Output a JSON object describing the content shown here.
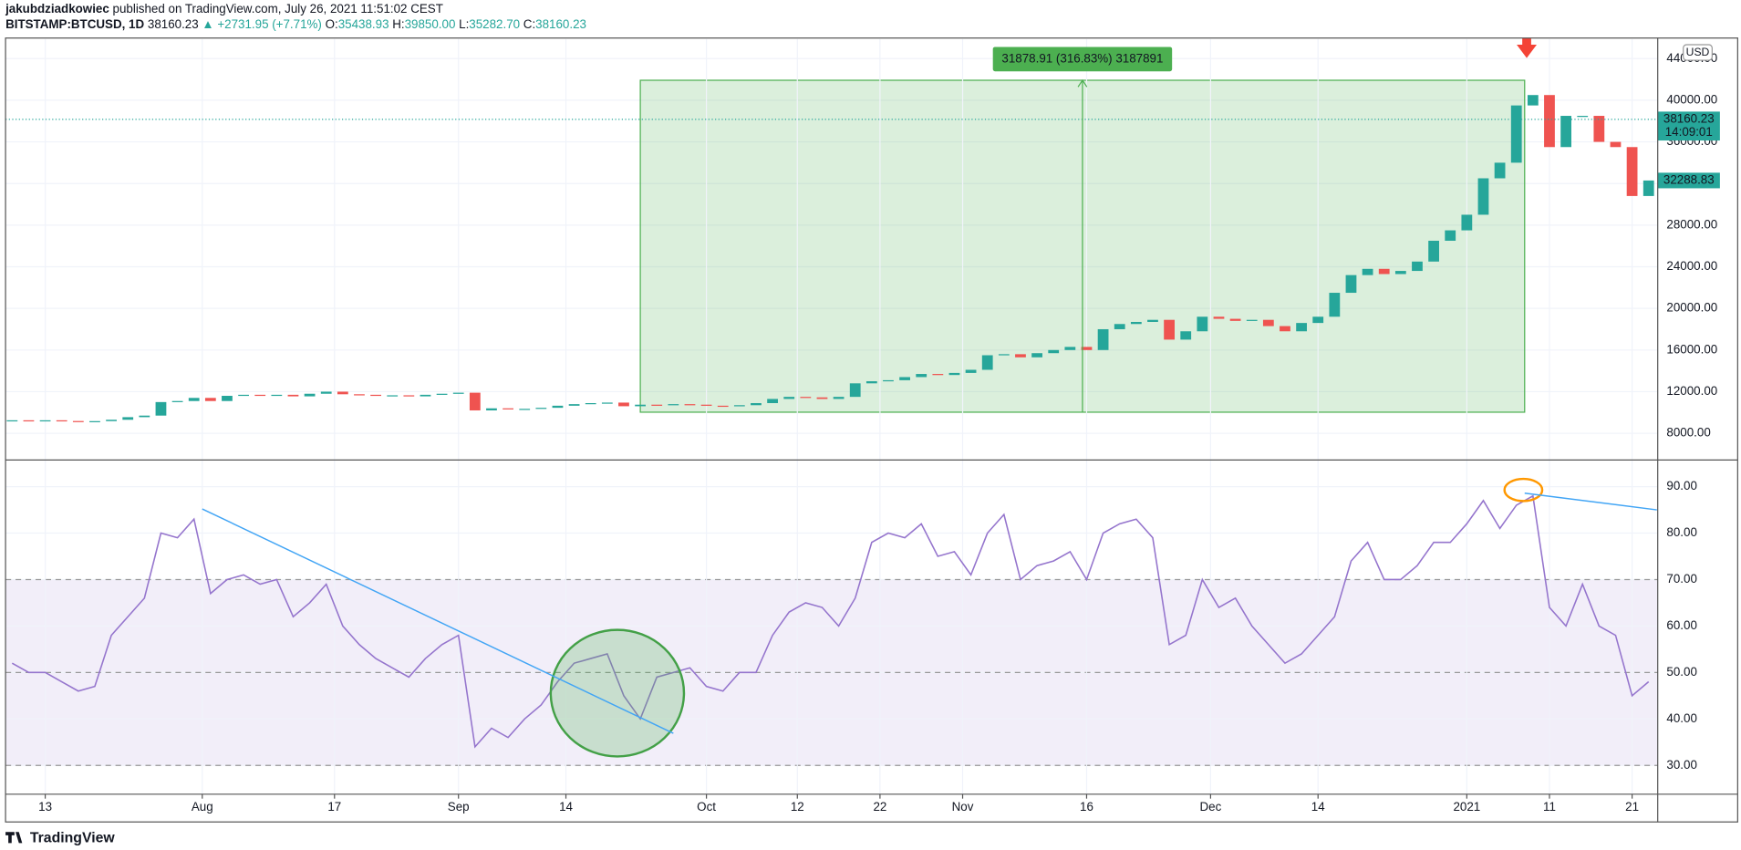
{
  "header": {
    "author": "jakubdziadkowiec",
    "published": "published on TradingView.com, July 26, 2021 11:51:02 CEST",
    "symbol": "BITSTAMP:BTCUSD, 1D",
    "last": "38160.23",
    "change": "▲ +2731.95 (+7.71%)",
    "ohlc": [
      {
        "label": "O:",
        "value": "35438.93"
      },
      {
        "label": "H:",
        "value": "39850.00"
      },
      {
        "label": "L:",
        "value": "35282.70"
      },
      {
        "label": "C:",
        "value": "38160.23"
      }
    ]
  },
  "footer": {
    "logo": "TradingView"
  },
  "chart_data": [
    {
      "type": "candlestick",
      "currency": "USD",
      "up_color": "#26a69a",
      "down_color": "#ef5350",
      "x": [
        0,
        2,
        4,
        6,
        8,
        10,
        12,
        14,
        16,
        18,
        20,
        22,
        24,
        26,
        28,
        30,
        32,
        34,
        36,
        38,
        40,
        42,
        44,
        46,
        48,
        50,
        52,
        54,
        56,
        58,
        60,
        62,
        64,
        66,
        68,
        70,
        72,
        74,
        76,
        78,
        80,
        82,
        84,
        86,
        88,
        90,
        92,
        94,
        96,
        98,
        100,
        102,
        104,
        106,
        108,
        110,
        112,
        114,
        116,
        118,
        120,
        122,
        124,
        126,
        128,
        130,
        132,
        134,
        136,
        138,
        140,
        142,
        144,
        146,
        148,
        150,
        152,
        154,
        156,
        158,
        160,
        162,
        164,
        166,
        168,
        170,
        172,
        174,
        176,
        178,
        180,
        182,
        184,
        186,
        188,
        190,
        192,
        194,
        196,
        198
      ],
      "close": [
        9250,
        9200,
        9250,
        9180,
        9150,
        9170,
        9300,
        9550,
        9700,
        11000,
        11100,
        11400,
        11100,
        11600,
        11700,
        11600,
        11700,
        11550,
        11800,
        12000,
        11750,
        11700,
        11600,
        11650,
        11550,
        11700,
        11800,
        11900,
        10200,
        10400,
        10300,
        10350,
        10450,
        10650,
        10800,
        10900,
        10950,
        10600,
        10750,
        10700,
        10800,
        10750,
        10650,
        10600,
        10700,
        10900,
        11300,
        11500,
        11450,
        11300,
        11500,
        12800,
        13000,
        13100,
        13400,
        13700,
        13600,
        13800,
        14100,
        15500,
        15600,
        15300,
        15700,
        16000,
        16300,
        16000,
        18000,
        18500,
        18700,
        18900,
        17000,
        17800,
        19200,
        19000,
        18800,
        18900,
        18300,
        17800,
        18600,
        19200,
        21500,
        23200,
        23800,
        23300,
        23600,
        24500,
        26500,
        27500,
        29000,
        32500,
        34000,
        39500,
        40500,
        35500,
        38500,
        38500,
        36000,
        35500,
        30800,
        32289
      ],
      "xlim": [
        -0.8,
        199.1
      ],
      "ylim": [
        5650,
        45870
      ],
      "yticks": [
        {
          "value": 8000,
          "label": "8000.00"
        },
        {
          "value": 12000,
          "label": "12000.00"
        },
        {
          "value": 16000,
          "label": "16000.00"
        },
        {
          "value": 20000,
          "label": "20000.00"
        },
        {
          "value": 24000,
          "label": "24000.00"
        },
        {
          "value": 28000,
          "label": "28000.00"
        },
        {
          "value": 32000,
          "label": "32000.00"
        },
        {
          "value": 36000,
          "label": "36000.00"
        },
        {
          "value": 40000,
          "label": "40000.00"
        },
        {
          "value": 44000,
          "label": "44000.00"
        }
      ],
      "price_labels": [
        {
          "value": 38160.23,
          "label": "38160.23",
          "sub": "14:09:01",
          "dotted": true
        },
        {
          "value": 32288.83,
          "label": "32288.83"
        }
      ],
      "measure": {
        "x": [
          76,
          183
        ],
        "y": [
          10027,
          41920
        ],
        "label": "31878.91 (316.83%) 3187891",
        "color": "#4caf50"
      }
    },
    {
      "type": "line",
      "color": "#9575cd",
      "x": [
        0,
        2,
        4,
        6,
        8,
        10,
        12,
        14,
        16,
        18,
        20,
        22,
        24,
        26,
        28,
        30,
        32,
        34,
        36,
        38,
        40,
        42,
        44,
        46,
        48,
        50,
        52,
        54,
        56,
        58,
        60,
        62,
        64,
        66,
        68,
        70,
        72,
        74,
        76,
        78,
        80,
        82,
        84,
        86,
        88,
        90,
        92,
        94,
        96,
        98,
        100,
        102,
        104,
        106,
        108,
        110,
        112,
        114,
        116,
        118,
        120,
        122,
        124,
        126,
        128,
        130,
        132,
        134,
        136,
        138,
        140,
        142,
        144,
        146,
        148,
        150,
        152,
        154,
        156,
        158,
        160,
        162,
        164,
        166,
        168,
        170,
        172,
        174,
        176,
        178,
        180,
        182,
        184,
        186,
        188,
        190,
        192,
        194,
        196,
        198
      ],
      "values": [
        52,
        50,
        50,
        48,
        46,
        47,
        58,
        62,
        66,
        80,
        79,
        83,
        67,
        70,
        71,
        69,
        70,
        62,
        65,
        69,
        60,
        56,
        53,
        51,
        49,
        53,
        56,
        58,
        34,
        38,
        36,
        40,
        43,
        48,
        52,
        53,
        54,
        45,
        40,
        49,
        50,
        51,
        47,
        46,
        50,
        50,
        58,
        63,
        65,
        64,
        60,
        66,
        78,
        80,
        79,
        82,
        75,
        76,
        71,
        80,
        84,
        70,
        73,
        74,
        76,
        70,
        80,
        82,
        83,
        79,
        56,
        58,
        70,
        64,
        66,
        60,
        56,
        52,
        54,
        58,
        62,
        74,
        78,
        70,
        70,
        73,
        78,
        78,
        82,
        87,
        81,
        86,
        88,
        64,
        60,
        69,
        60,
        58,
        45,
        48
      ],
      "xlim": [
        -0.8,
        199.1
      ],
      "ylim": [
        23.8,
        95.5
      ],
      "yticks": [
        {
          "value": 30,
          "label": "30.00"
        },
        {
          "value": 40,
          "label": "40.00"
        },
        {
          "value": 50,
          "label": "50.00"
        },
        {
          "value": 60,
          "label": "60.00"
        },
        {
          "value": 70,
          "label": "70.00"
        },
        {
          "value": 80,
          "label": "80.00"
        },
        {
          "value": 90,
          "label": "90.00"
        }
      ],
      "band": [
        30,
        70
      ],
      "levels": [
        70,
        50,
        30
      ],
      "trendlines": [
        {
          "x": [
            23,
            80
          ],
          "y": [
            85.2,
            36.9
          ]
        },
        {
          "x": [
            183,
            199
          ],
          "y": [
            88.6,
            85
          ]
        }
      ],
      "trend_color": "#42a5f5",
      "xticks": [
        {
          "value": 4,
          "label": "13"
        },
        {
          "value": 23,
          "label": "Aug"
        },
        {
          "value": 39,
          "label": "17"
        },
        {
          "value": 54,
          "label": "Sep"
        },
        {
          "value": 67,
          "label": "14"
        },
        {
          "value": 84,
          "label": "Oct"
        },
        {
          "value": 95,
          "label": "12"
        },
        {
          "value": 105,
          "label": "22"
        },
        {
          "value": 115,
          "label": "Nov"
        },
        {
          "value": 130,
          "label": "16"
        },
        {
          "value": 145,
          "label": "Dec"
        },
        {
          "value": 158,
          "label": "14"
        },
        {
          "value": 176,
          "label": "2021"
        },
        {
          "value": 186,
          "label": "11"
        },
        {
          "value": 196,
          "label": "21"
        }
      ]
    }
  ]
}
